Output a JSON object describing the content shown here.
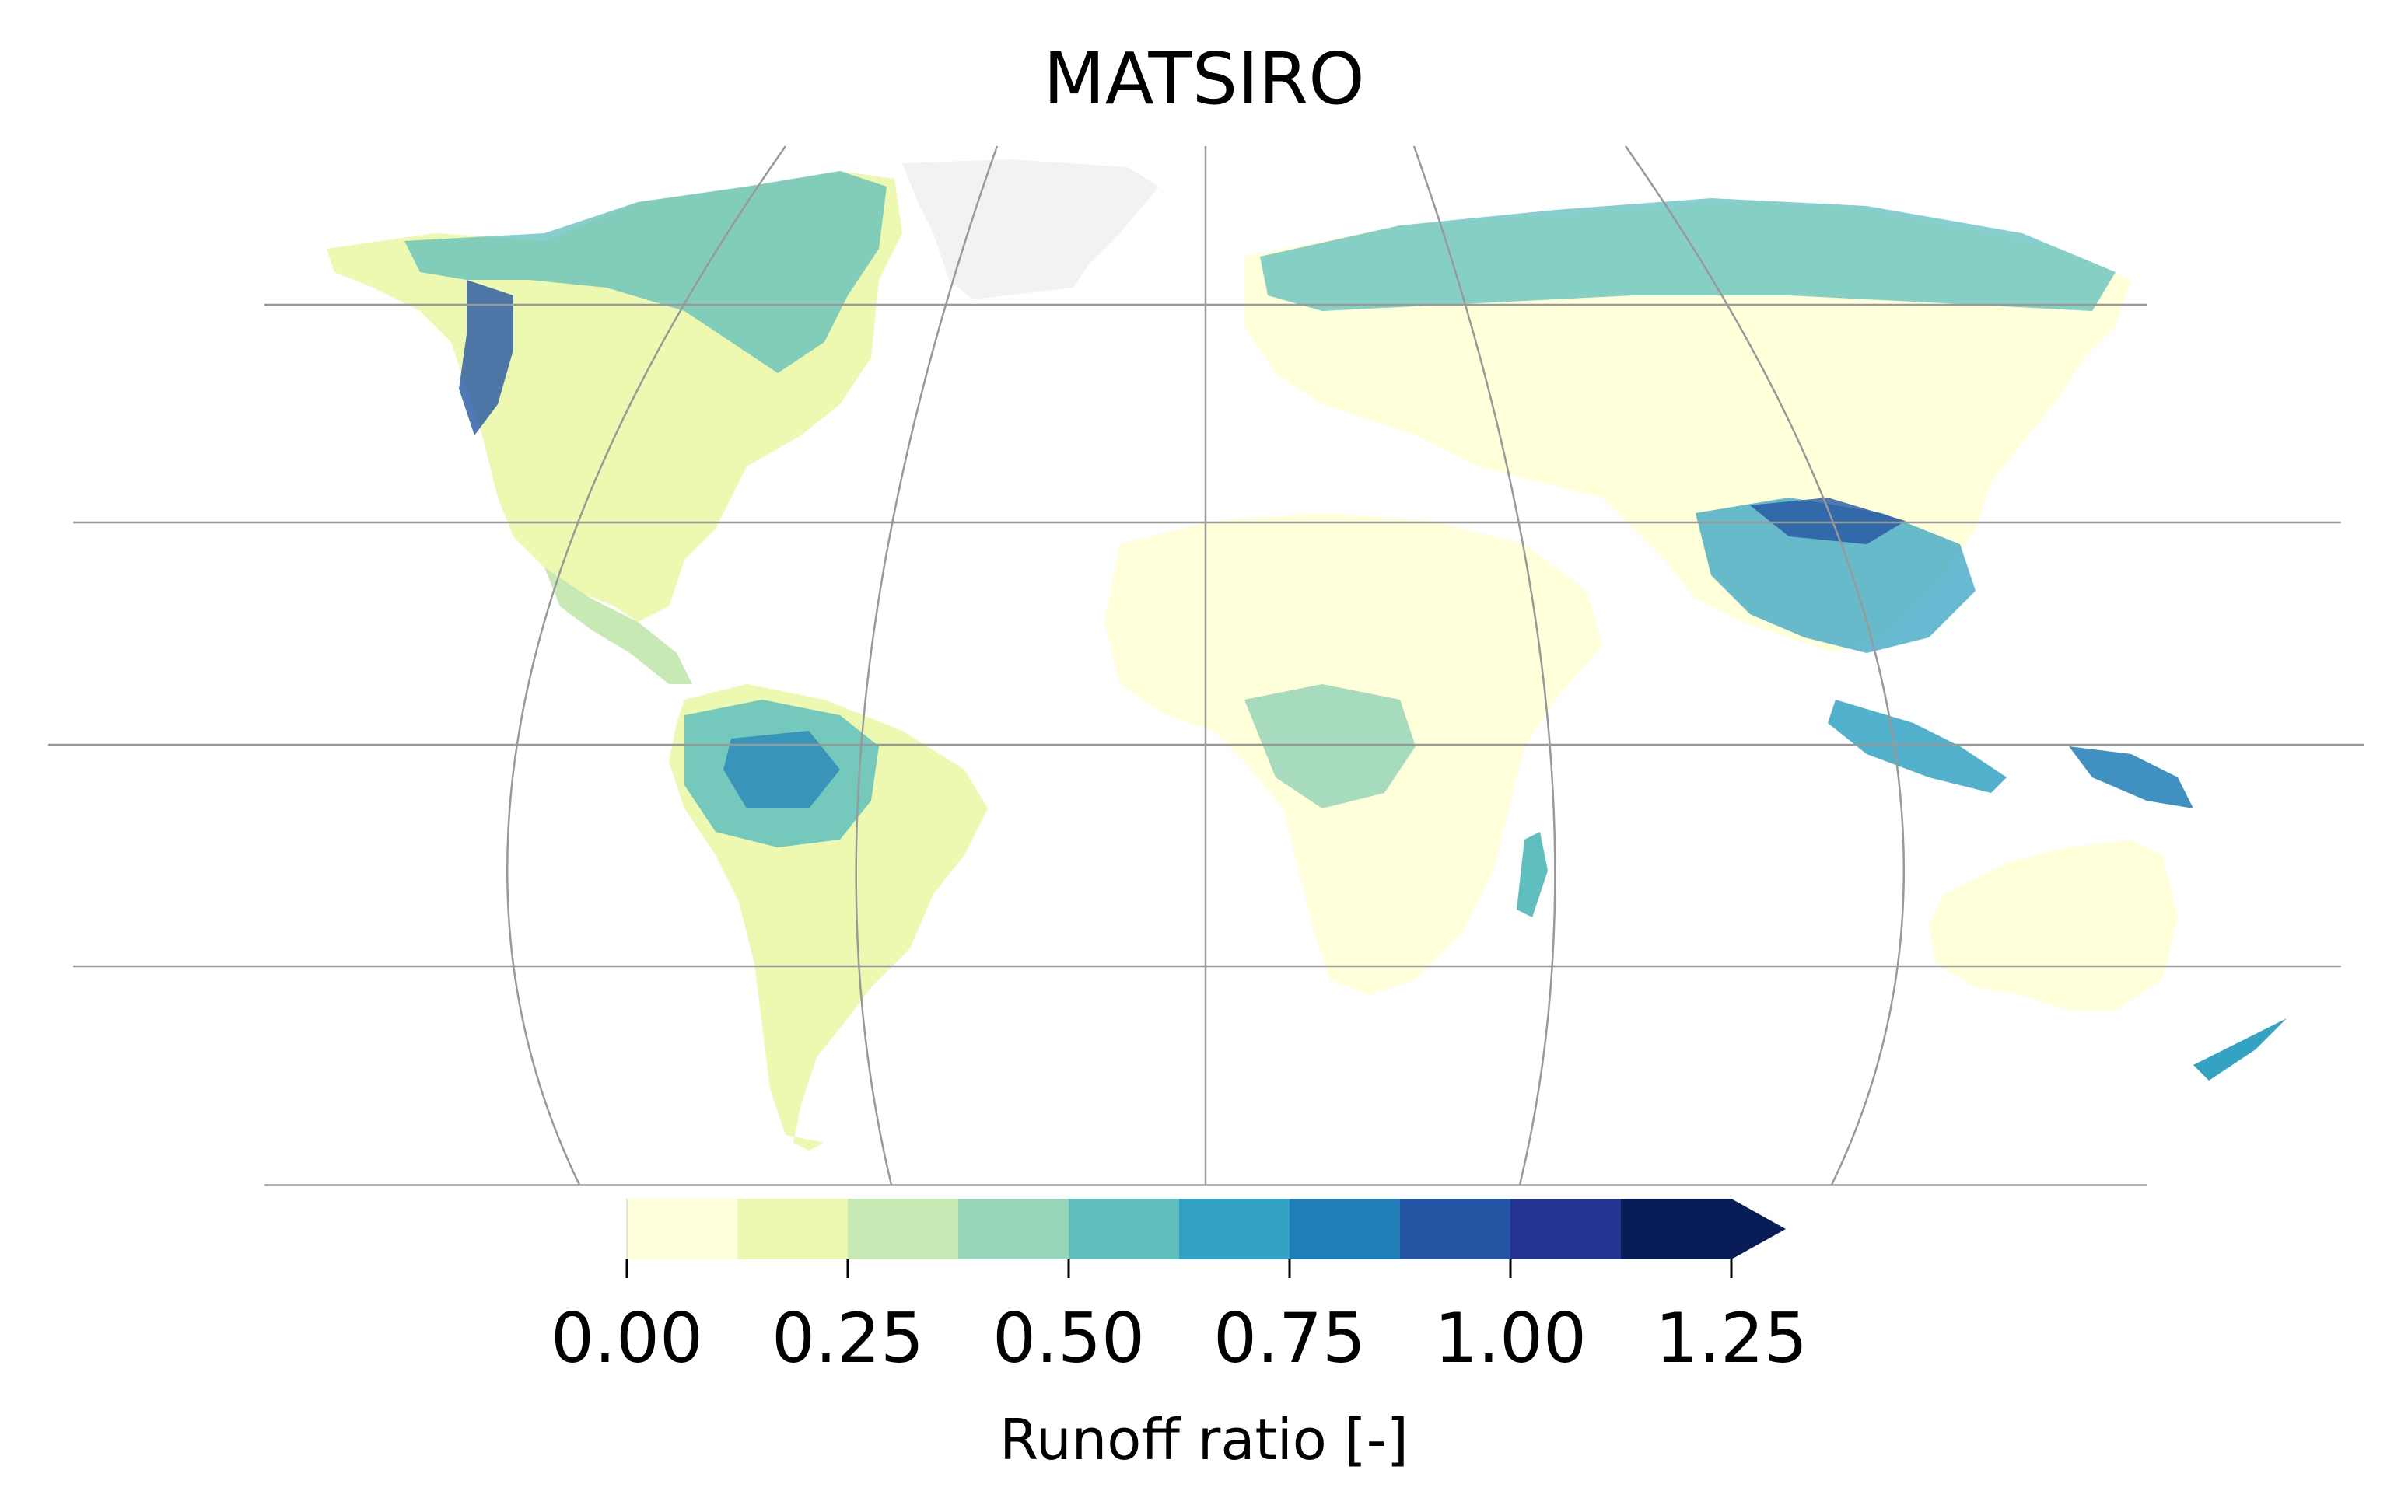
{
  "title": "MATSIRO",
  "colorbar": {
    "label": "Runoff ratio [-]",
    "ticks": [
      "0.00",
      "0.25",
      "0.50",
      "0.75",
      "1.00",
      "1.25"
    ],
    "bins": [
      {
        "from": 0.0,
        "to": 0.125,
        "color": "#ffffd9"
      },
      {
        "from": 0.125,
        "to": 0.25,
        "color": "#edf8b1"
      },
      {
        "from": 0.25,
        "to": 0.375,
        "color": "#c7e9b4"
      },
      {
        "from": 0.375,
        "to": 0.5,
        "color": "#97d5b9"
      },
      {
        "from": 0.5,
        "to": 0.625,
        "color": "#5ebfbe"
      },
      {
        "from": 0.625,
        "to": 0.75,
        "color": "#34a3c3"
      },
      {
        "from": 0.75,
        "to": 0.875,
        "color": "#1f7eb6"
      },
      {
        "from": 0.875,
        "to": 1.0,
        "color": "#2455a4"
      },
      {
        "from": 1.0,
        "to": 1.125,
        "color": "#243290"
      },
      {
        "from": 1.125,
        "to": 1.25,
        "color": "#081d58"
      }
    ],
    "extend": "max",
    "extend_color": "#081d58"
  },
  "map": {
    "no_data_color": "#f2f2f2",
    "gridline_color": "#999999"
  }
}
